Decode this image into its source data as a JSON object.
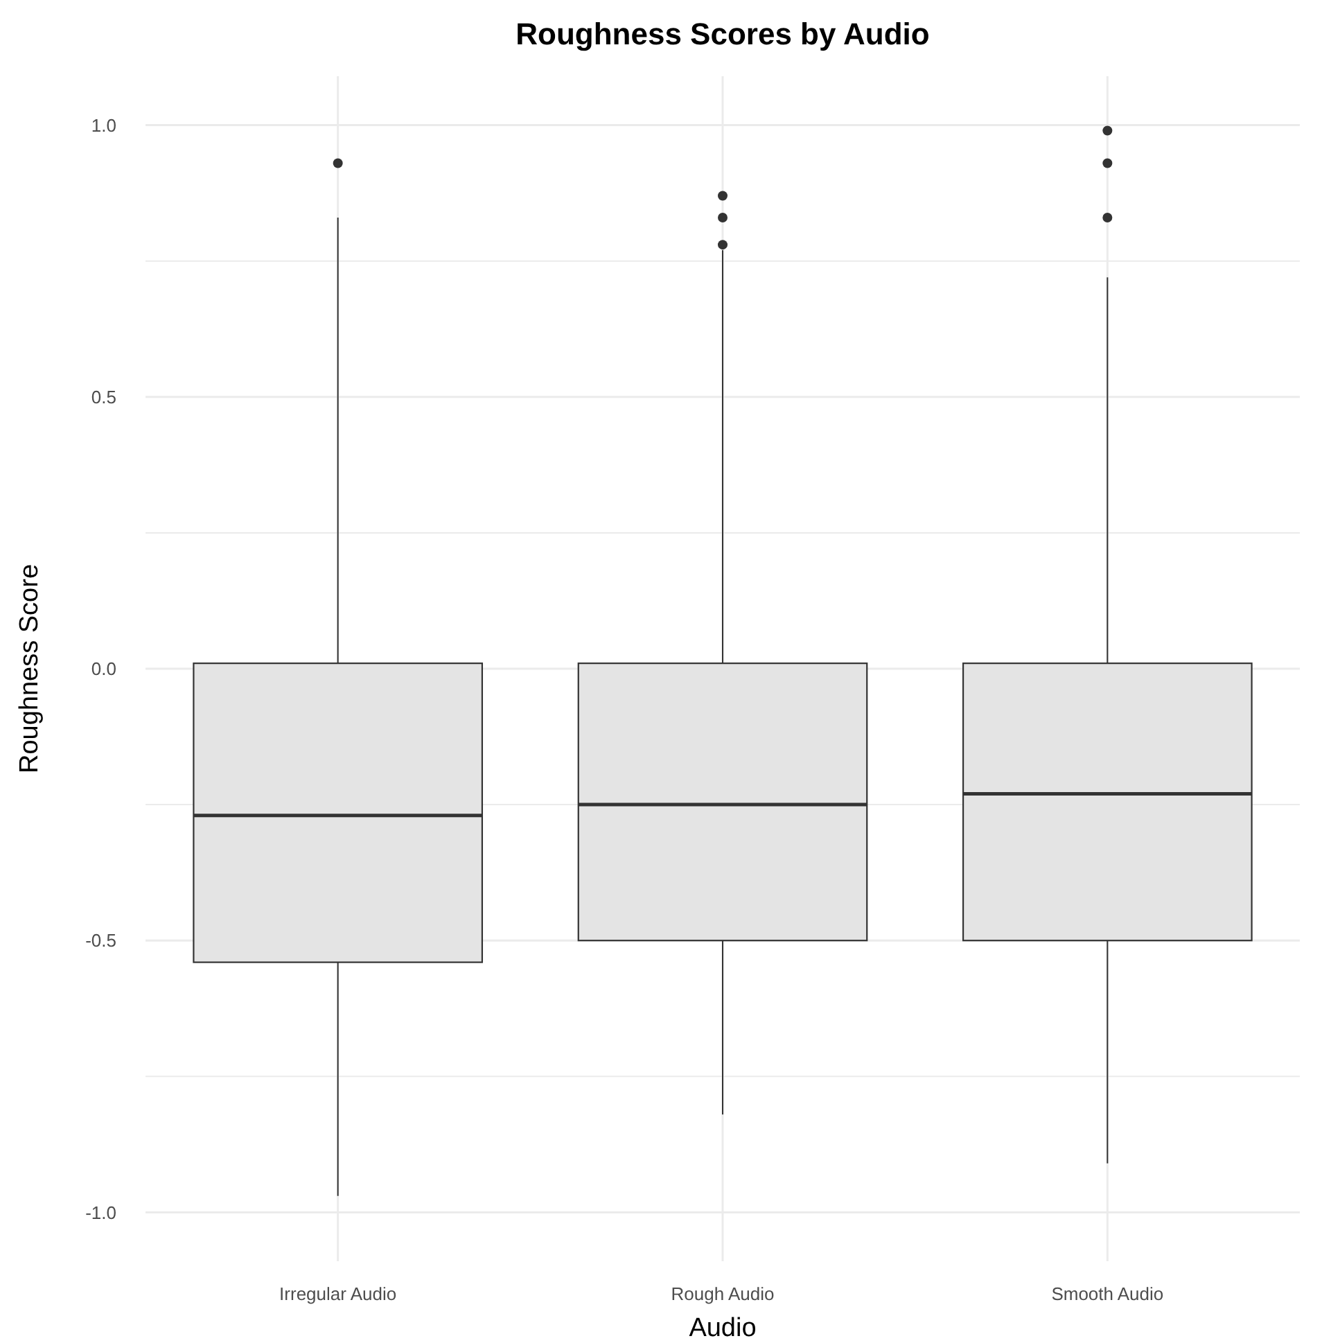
{
  "chart_data": {
    "type": "box",
    "title": "Roughness Scores by Audio",
    "xlabel": "Audio",
    "ylabel": "Roughness Score",
    "categories": [
      "Irregular Audio",
      "Rough Audio",
      "Smooth Audio"
    ],
    "boxes": [
      {
        "low": -0.97,
        "q1": -0.54,
        "median": -0.27,
        "q3": 0.01,
        "high": 0.83,
        "outliers": [
          0.93
        ]
      },
      {
        "low": -0.82,
        "q1": -0.5,
        "median": -0.25,
        "q3": 0.01,
        "high": 0.77,
        "outliers": [
          0.87,
          0.83,
          0.78
        ]
      },
      {
        "low": -0.91,
        "q1": -0.5,
        "median": -0.23,
        "q3": 0.01,
        "high": 0.72,
        "outliers": [
          0.99,
          0.93,
          0.83
        ]
      }
    ],
    "color": "#e4e4e4",
    "ylim": [
      -1.09,
      1.09
    ],
    "yticks": [
      {
        "value": -1,
        "label": "-1.0"
      },
      {
        "value": -0.75,
        "label": null
      },
      -0.5,
      {
        "value": -0.25,
        "label": null
      },
      {
        "value": 0,
        "label": "0.0"
      },
      {
        "value": 0.25,
        "label": null
      },
      0.5,
      {
        "value": 0.75,
        "label": null
      },
      {
        "value": 1,
        "label": "1.0"
      }
    ],
    "grid": true
  }
}
